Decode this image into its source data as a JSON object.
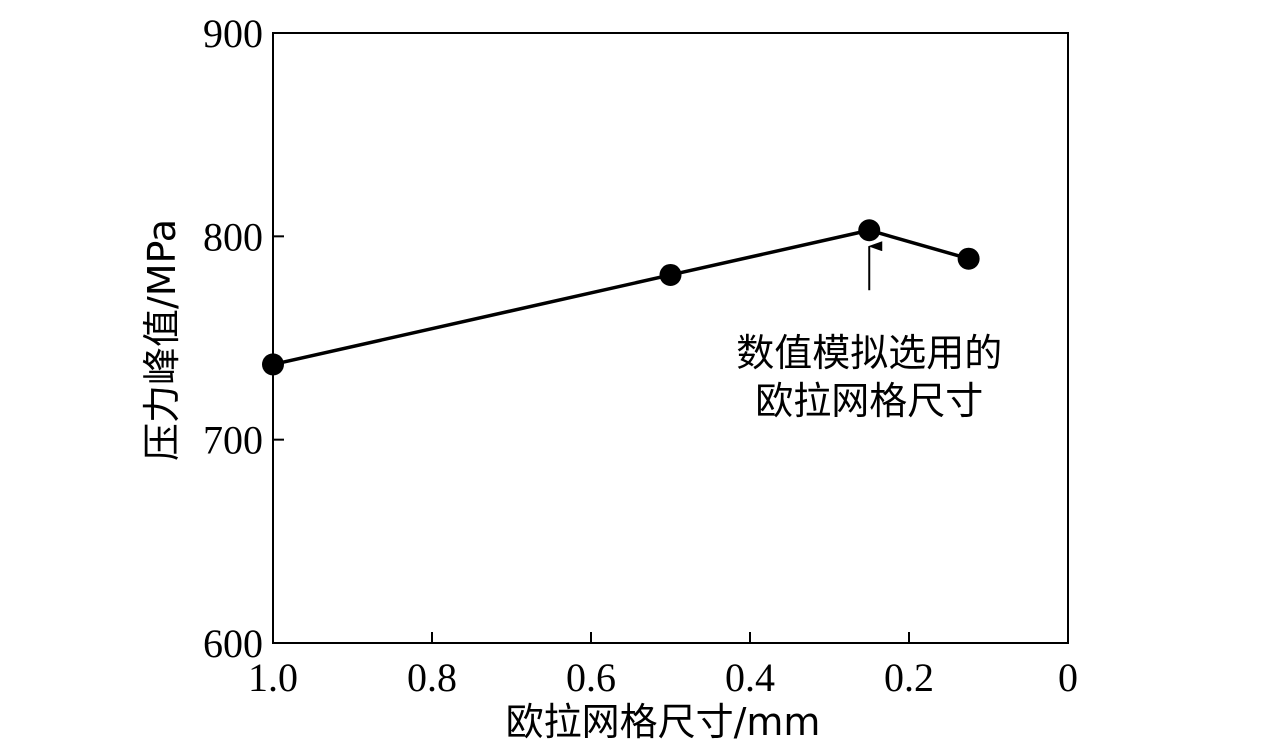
{
  "chart_data": {
    "type": "line",
    "title": "",
    "xlabel": "欧拉网格尺寸/mm",
    "ylabel": "压力峰值/MPa",
    "xlim": [
      1.0,
      0
    ],
    "ylim": [
      600,
      900
    ],
    "x_reversed": true,
    "xticks": [
      1.0,
      0.8,
      0.6,
      0.4,
      0.2,
      0
    ],
    "xtick_labels": [
      "1.0",
      "0.8",
      "0.6",
      "0.4",
      "0.2",
      "0"
    ],
    "yticks": [
      600,
      700,
      800,
      900
    ],
    "ytick_labels": [
      "600",
      "700",
      "800",
      "900"
    ],
    "grid": false,
    "series": [
      {
        "x": [
          1.0,
          0.5,
          0.25,
          0.125
        ],
        "y": [
          737,
          781,
          803,
          789
        ],
        "color": "#000000",
        "marker": "filled-circle"
      }
    ],
    "annotations": [
      {
        "text_lines": [
          "数值模拟选用的",
          "欧拉网格尺寸"
        ],
        "points_to": {
          "x": 0.25,
          "y": 803
        }
      }
    ]
  }
}
